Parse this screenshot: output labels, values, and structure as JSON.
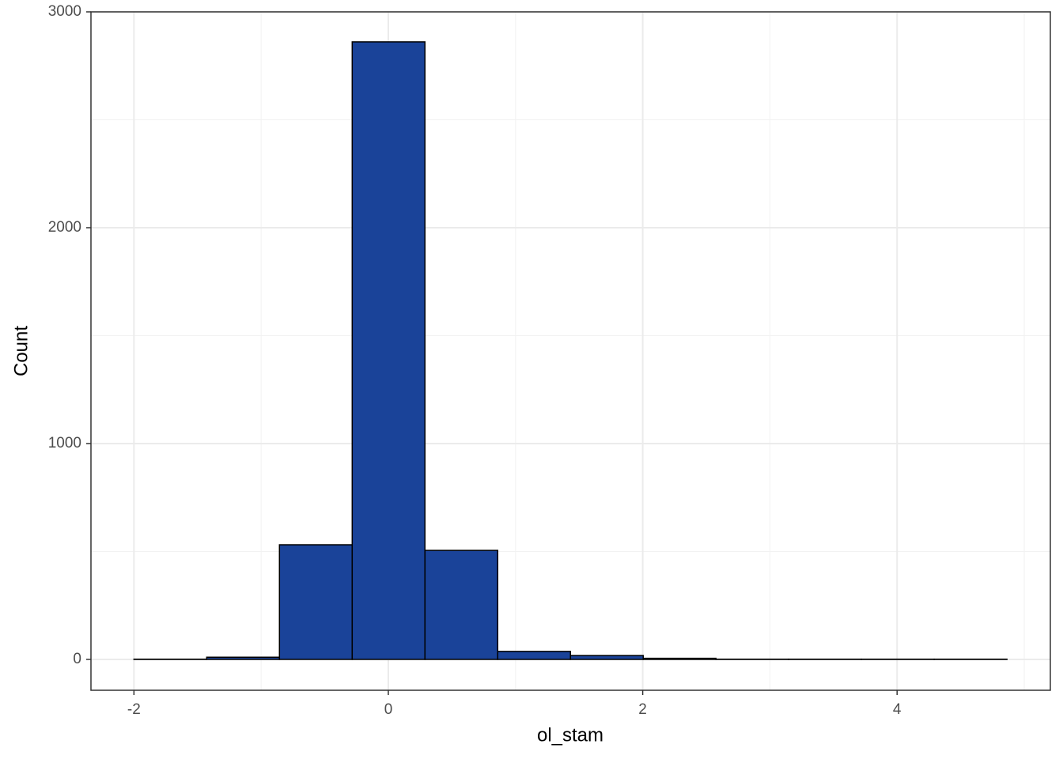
{
  "chart_data": {
    "type": "histogram",
    "x_label": "ol_stam",
    "y_label": "Count",
    "bins": [
      -2,
      -1.428,
      -0.856,
      -0.284,
      0.288,
      0.86,
      1.432,
      2.004,
      2.576,
      3.148,
      3.72,
      4.292,
      4.864
    ],
    "values": [
      1,
      10,
      531,
      2861,
      505,
      37,
      18,
      5,
      1,
      1,
      1,
      1
    ],
    "color": "#1a4399",
    "xlim": [
      -2.338,
      5.205
    ],
    "ylim": [
      -143,
      3000
    ],
    "xticks": [
      -2,
      0,
      2,
      4
    ],
    "yticks": [
      0,
      1000,
      2000,
      3000
    ],
    "x_minor_grid": [
      -1,
      1,
      3,
      5
    ],
    "y_minor_grid": [
      500,
      1500,
      2500
    ],
    "grid": true
  }
}
